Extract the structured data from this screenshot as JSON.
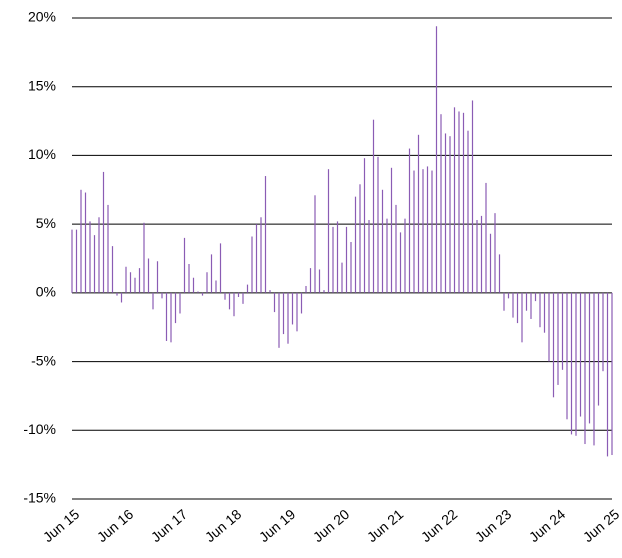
{
  "chart_data": {
    "type": "bar",
    "categories": [
      "Jun 15",
      null,
      null,
      null,
      null,
      null,
      null,
      null,
      null,
      null,
      null,
      null,
      "Jun 16",
      null,
      null,
      null,
      null,
      null,
      null,
      null,
      null,
      null,
      null,
      null,
      "Jun 17",
      null,
      null,
      null,
      null,
      null,
      null,
      null,
      null,
      null,
      null,
      null,
      "Jun 18",
      null,
      null,
      null,
      null,
      null,
      null,
      null,
      null,
      null,
      null,
      null,
      "Jun 19",
      null,
      null,
      null,
      null,
      null,
      null,
      null,
      null,
      null,
      null,
      null,
      "Jun 20",
      null,
      null,
      null,
      null,
      null,
      null,
      null,
      null,
      null,
      null,
      null,
      "Jun 21",
      null,
      null,
      null,
      null,
      null,
      null,
      null,
      null,
      null,
      null,
      null,
      "Jun 22",
      null,
      null,
      null,
      null,
      null,
      null,
      null,
      null,
      null,
      null,
      null,
      "Jun 23",
      null,
      null,
      null,
      null,
      null,
      null,
      null,
      null,
      null,
      null,
      null,
      "Jun 24",
      null,
      null,
      null,
      null,
      null,
      null,
      null,
      null,
      null,
      null,
      null,
      "Jun 25"
    ],
    "values": [
      4.6,
      4.6,
      7.5,
      7.3,
      5.2,
      4.2,
      5.5,
      8.8,
      6.4,
      3.4,
      -0.2,
      -0.7,
      1.9,
      1.5,
      1.1,
      1.8,
      5.1,
      2.5,
      -1.2,
      2.3,
      -0.4,
      -3.5,
      -3.6,
      -2.2,
      -1.5,
      4.0,
      2.1,
      1.1,
      0.1,
      -0.2,
      1.5,
      2.8,
      0.9,
      3.6,
      -0.5,
      -1.2,
      -1.7,
      -0.3,
      -0.8,
      0.6,
      4.1,
      5.0,
      5.5,
      8.5,
      0.2,
      -1.4,
      -4.0,
      -3.0,
      -3.7,
      -2.3,
      -2.8,
      -1.5,
      0.5,
      1.8,
      7.1,
      1.7,
      0.2,
      9.0,
      4.8,
      5.2,
      2.2,
      4.8,
      3.7,
      7.0,
      7.9,
      9.8,
      5.3,
      12.6,
      9.9,
      7.5,
      5.4,
      9.1,
      6.4,
      4.4,
      5.4,
      10.5,
      8.9,
      11.5,
      9.0,
      9.2,
      8.9,
      19.4,
      13.0,
      11.6,
      11.4,
      13.5,
      13.2,
      13.1,
      11.8,
      14.0,
      5.3,
      5.6,
      8.0,
      4.3,
      5.8,
      2.8,
      -1.3,
      -0.4,
      -1.8,
      -2.2,
      -3.6,
      -1.3,
      -1.9,
      -0.6,
      -2.5,
      -2.9,
      -5.0,
      -7.6,
      -6.7,
      -5.6,
      -9.2,
      -10.3,
      -10.4,
      -9.0,
      -11.0,
      -9.5,
      -11.1,
      -8.2,
      -5.7,
      -11.9,
      -11.8
    ],
    "color": "#8a5cb4",
    "ylim": [
      -15,
      20
    ],
    "yticks": [
      {
        "value": -15,
        "label": "-15%"
      },
      {
        "value": -10,
        "label": "-10%"
      },
      {
        "value": -5,
        "label": "-5%"
      },
      {
        "value": 0,
        "label": "0%"
      },
      {
        "value": 5,
        "label": "5%"
      },
      {
        "value": 10,
        "label": "10%"
      },
      {
        "value": 15,
        "label": "15%"
      },
      {
        "value": 20,
        "label": "20%"
      }
    ],
    "grid": true
  }
}
